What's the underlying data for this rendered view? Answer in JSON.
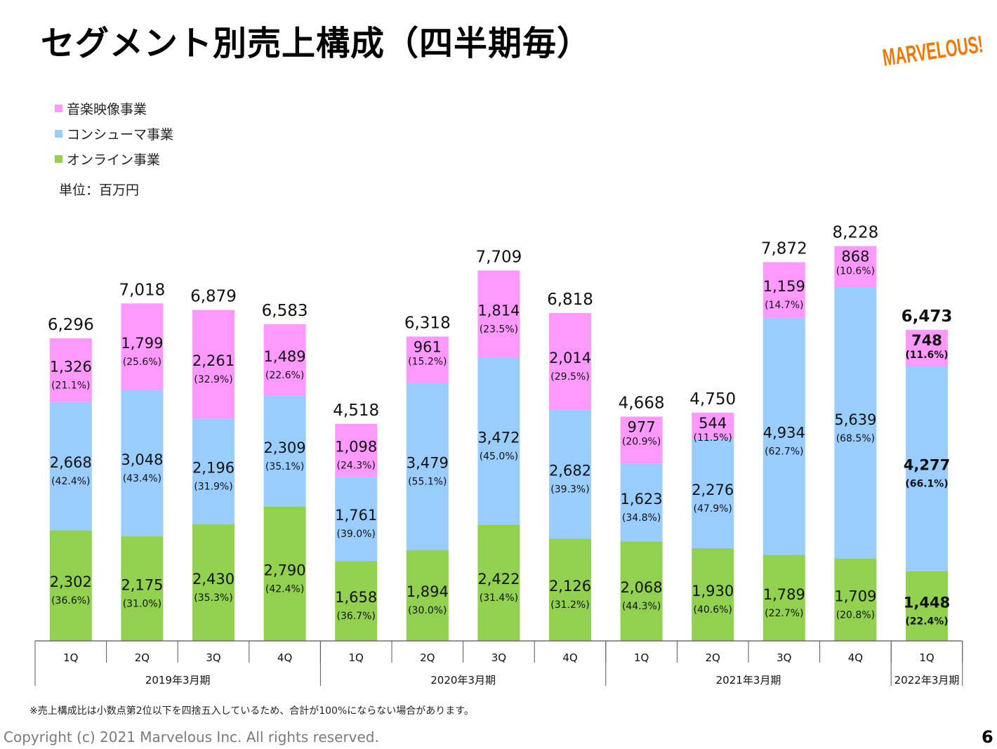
{
  "slide": {
    "title": "セグメント別売上構成（四半期毎）",
    "logo_text": "MARVELOUS!",
    "unit_label": "単位：百万円",
    "footnote": "※売上構成比は小数点第2位以下を四捨五入しているため、合計が100%にならない場合があります。",
    "copyright": "Copyright (c) 2021 Marvelous Inc. All rights reserved.",
    "page_number": "6"
  },
  "colors": {
    "music": "#ff99ff",
    "consumer": "#99ccff",
    "online": "#92d050",
    "logo": "#f07800"
  },
  "chart_data": {
    "type": "bar",
    "stacked": true,
    "unit": "百万円",
    "categories": [
      "1Q",
      "2Q",
      "3Q",
      "4Q",
      "1Q",
      "2Q",
      "3Q",
      "4Q",
      "1Q",
      "2Q",
      "3Q",
      "4Q",
      "1Q"
    ],
    "groups": [
      {
        "label": "2019年3月期",
        "count": 4
      },
      {
        "label": "2020年3月期",
        "count": 4
      },
      {
        "label": "2021年3月期",
        "count": 4
      },
      {
        "label": "2022年3月期",
        "count": 1
      }
    ],
    "series": [
      {
        "name": "オンライン事業",
        "values": [
          2302,
          2175,
          2430,
          2790,
          1658,
          1894,
          2422,
          2126,
          2068,
          1930,
          1789,
          1709,
          1448
        ],
        "labels": [
          "2,302",
          "2,175",
          "2,430",
          "2,790",
          "1,658",
          "1,894",
          "2,422",
          "2,126",
          "2,068",
          "1,930",
          "1,789",
          "1,709",
          "1,448"
        ],
        "shares": [
          "(36.6%)",
          "(31.0%)",
          "(35.3%)",
          "(42.4%)",
          "(36.7%)",
          "(30.0%)",
          "(31.4%)",
          "(31.2%)",
          "(44.3%)",
          "(40.6%)",
          "(22.7%)",
          "(20.8%)",
          "(22.4%)"
        ]
      },
      {
        "name": "コンシューマ事業",
        "values": [
          2668,
          3048,
          2196,
          2309,
          1761,
          3479,
          3472,
          2682,
          1623,
          2276,
          4934,
          5639,
          4277
        ],
        "labels": [
          "2,668",
          "3,048",
          "2,196",
          "2,309",
          "1,761",
          "3,479",
          "3,472",
          "2,682",
          "1,623",
          "2,276",
          "4,934",
          "5,639",
          "4,277"
        ],
        "shares": [
          "(42.4%)",
          "(43.4%)",
          "(31.9%)",
          "(35.1%)",
          "(39.0%)",
          "(55.1%)",
          "(45.0%)",
          "(39.3%)",
          "(34.8%)",
          "(47.9%)",
          "(62.7%)",
          "(68.5%)",
          "(66.1%)"
        ]
      },
      {
        "name": "音楽映像事業",
        "values": [
          1326,
          1799,
          2261,
          1489,
          1098,
          961,
          1814,
          2014,
          977,
          544,
          1159,
          868,
          748
        ],
        "labels": [
          "1,326",
          "1,799",
          "2,261",
          "1,489",
          "1,098",
          "961",
          "1,814",
          "2,014",
          "977",
          "544",
          "1,159",
          "868",
          "748"
        ],
        "shares": [
          "(21.1%)",
          "(25.6%)",
          "(32.9%)",
          "(22.6%)",
          "(24.3%)",
          "(15.2%)",
          "(23.5%)",
          "(29.5%)",
          "(20.9%)",
          "(11.5%)",
          "(14.7%)",
          "(10.6%)",
          "(11.6%)"
        ]
      }
    ],
    "totals": [
      6296,
      7018,
      6879,
      6583,
      4518,
      6318,
      7709,
      6818,
      4668,
      4750,
      7872,
      8228,
      6473
    ],
    "total_labels": [
      "6,296",
      "7,018",
      "6,879",
      "6,583",
      "4,518",
      "6,318",
      "7,709",
      "6,818",
      "4,668",
      "4,750",
      "7,872",
      "8,228",
      "6,473"
    ],
    "legend": [
      "音楽映像事業",
      "コンシューマ事業",
      "オンライン事業"
    ],
    "legend_position": "top-left",
    "highlight_last": true,
    "grid": false
  }
}
